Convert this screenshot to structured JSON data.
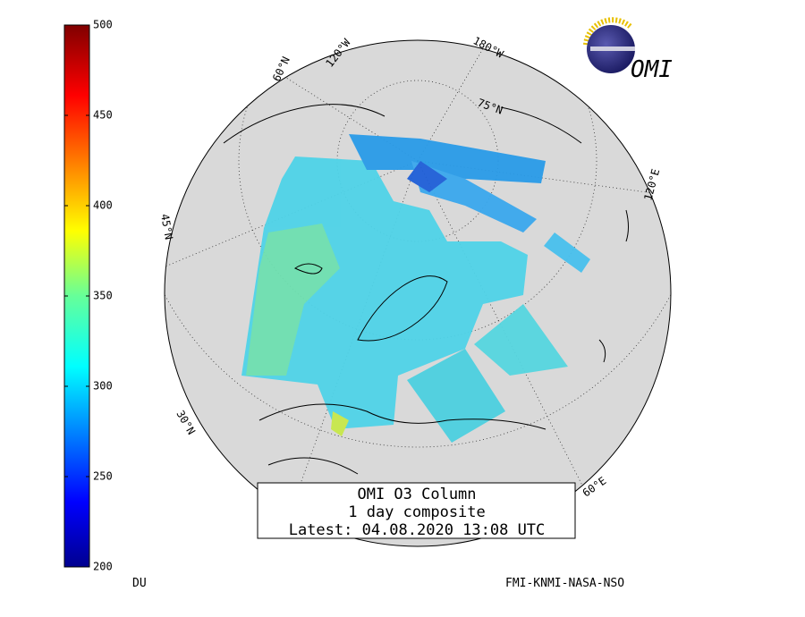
{
  "colorbar": {
    "range": [
      200,
      500
    ],
    "ticks": [
      200,
      250,
      300,
      350,
      400,
      450,
      500
    ],
    "unit": "DU"
  },
  "title": {
    "lines": [
      "OMI O3 Column",
      "1 day composite",
      "Latest: 04.08.2020 13:08 UTC"
    ]
  },
  "credit": "FMI-KNMI-NASA-NSO",
  "logo": "OMI",
  "graticule_labels": [
    "120°W",
    "180°W",
    "60°N",
    "75°N",
    "45°N",
    "120°E",
    "30°N",
    "60°E"
  ]
}
